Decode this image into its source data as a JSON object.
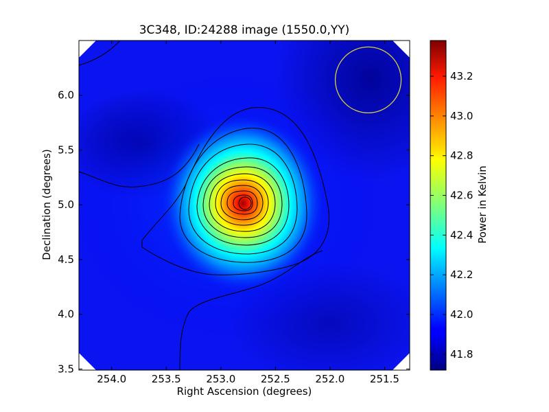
{
  "chart_data": {
    "type": "heatmap",
    "title": "3C348, ID:24288 image (1550.0,YY)",
    "xlabel": "Right Ascension (degrees)",
    "ylabel": "Declination (degrees)",
    "colorbar_label": "Power in Kelvin",
    "xlim": [
      254.3,
      251.27
    ],
    "ylim": [
      3.49,
      6.5
    ],
    "xticks": [
      254.0,
      253.5,
      253.0,
      252.5,
      252.0,
      251.5
    ],
    "xtick_labels": [
      "254.0",
      "253.5",
      "253.0",
      "252.5",
      "252.0",
      "251.5"
    ],
    "yticks": [
      3.5,
      4.0,
      4.5,
      5.0,
      5.5,
      6.0
    ],
    "ytick_labels": [
      "3.5",
      "4.0",
      "4.5",
      "5.0",
      "5.5",
      "6.0"
    ],
    "colorbar_range": [
      41.72,
      43.38
    ],
    "colorbar_ticks": [
      41.8,
      42.0,
      42.2,
      42.4,
      42.6,
      42.8,
      43.0,
      43.2
    ],
    "colorbar_tick_labels": [
      "41.8",
      "42.0",
      "42.2",
      "42.4",
      "42.6",
      "42.8",
      "43.0",
      "43.2"
    ],
    "colormap": "jet",
    "peak": {
      "ra": 252.75,
      "dec": 5.02,
      "value": 43.38
    },
    "contours": "black",
    "beam_circle": {
      "ra": 251.65,
      "dec": 6.14,
      "color": "#d6d23a"
    },
    "grid": false
  }
}
